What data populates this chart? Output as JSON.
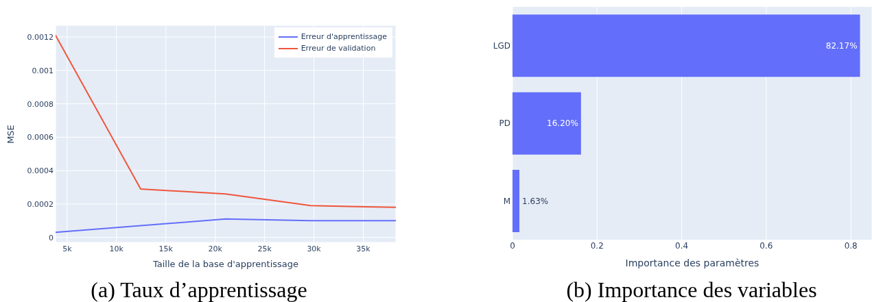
{
  "chart_data": [
    {
      "type": "line",
      "x": [
        3830,
        12450,
        21070,
        29680,
        38300
      ],
      "series": [
        {
          "name": "Erreur d'apprentissage",
          "color": "#636efa",
          "values": [
            3e-05,
            7e-05,
            0.00011,
            0.0001,
            0.0001
          ]
        },
        {
          "name": "Erreur de validation",
          "color": "#ef553b",
          "values": [
            0.00121,
            0.00029,
            0.00026,
            0.00019,
            0.00018
          ]
        }
      ],
      "xlim": [
        3830,
        38300
      ],
      "xticks": [
        {
          "value": 5000,
          "label": "5k"
        },
        {
          "value": 10000,
          "label": "10k"
        },
        {
          "value": 15000,
          "label": "15k"
        },
        {
          "value": 20000,
          "label": "20k"
        },
        {
          "value": 25000,
          "label": "25k"
        },
        {
          "value": 30000,
          "label": "30k"
        },
        {
          "value": 35000,
          "label": "35k"
        }
      ],
      "ylim": [
        -3e-05,
        0.00127
      ],
      "yticks": [
        0,
        0.0002,
        0.0004,
        0.0006,
        0.0008,
        0.001,
        0.0012
      ],
      "xlabel": "Taille de la base d'apprentissage",
      "ylabel": "MSE",
      "legend": "top right",
      "grid": true,
      "annotations": [
        "(a) Taux d’apprentissage"
      ]
    },
    {
      "type": "bar",
      "orientation": "horizontal",
      "categories": [
        "LGD",
        "PD",
        "M"
      ],
      "values": [
        0.8217,
        0.162,
        0.0163
      ],
      "value_labels": [
        "82.17%",
        "16.20%",
        "1.63%"
      ],
      "color": "#636efa",
      "xlim": [
        0,
        0.85
      ],
      "xticks": [
        0,
        0.2,
        0.4,
        0.6,
        0.8
      ],
      "xlabel": "Importance des paramètres",
      "grid": "x",
      "annotations": [
        "(b) Importance des variables"
      ]
    }
  ]
}
